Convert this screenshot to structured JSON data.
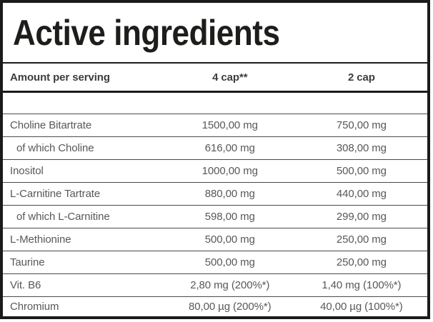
{
  "title": "Active ingredients",
  "table": {
    "columns": [
      "Amount per serving",
      "4 cap**",
      "2 cap"
    ],
    "rows": [
      {
        "name": "Choline Bitartrate",
        "indent": false,
        "cap4": "1500,00 mg",
        "cap2": "750,00 mg"
      },
      {
        "name": "of which Choline",
        "indent": true,
        "cap4": "616,00 mg",
        "cap2": "308,00 mg"
      },
      {
        "name": "Inositol",
        "indent": false,
        "cap4": "1000,00 mg",
        "cap2": "500,00 mg"
      },
      {
        "name": "L-Carnitine Tartrate",
        "indent": false,
        "cap4": "880,00 mg",
        "cap2": "440,00 mg"
      },
      {
        "name": "of which L-Carnitine",
        "indent": true,
        "cap4": "598,00 mg",
        "cap2": "299,00 mg"
      },
      {
        "name": "L-Methionine",
        "indent": false,
        "cap4": "500,00 mg",
        "cap2": "250,00 mg"
      },
      {
        "name": "Taurine",
        "indent": false,
        "cap4": "500,00 mg",
        "cap2": "250,00 mg"
      },
      {
        "name": "Vit. B6",
        "indent": false,
        "cap4": "2,80 mg (200%*)",
        "cap2": "1,40 mg (100%*)"
      },
      {
        "name": "Chromium",
        "indent": false,
        "cap4": "80,00 µg (200%*)",
        "cap2": "40,00 µg (100%*)"
      }
    ]
  },
  "colors": {
    "border_black": "#1b1b1b",
    "title_text": "#1d1d1b",
    "header_text": "#3d3d3c",
    "data_text": "#58585a",
    "separator": "#4a4a4a",
    "background": "#ffffff"
  }
}
